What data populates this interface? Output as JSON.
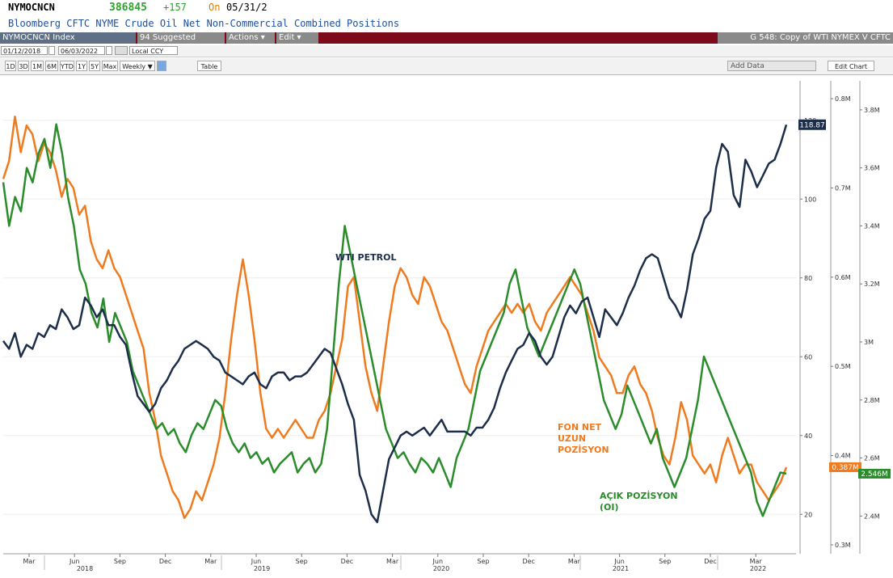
{
  "header": {
    "ticker": "NYMOCNCN",
    "last": "386845",
    "change": "+157",
    "on_label": "On",
    "date": "05/31/2",
    "description": "Bloomberg CFTC NYME Crude Oil Net Non-Commercial Combined Positions"
  },
  "toolbar": {
    "index": "NYMOCNCN Index",
    "suggested": "94 Suggested Charts",
    "actions": "Actions ▾",
    "edit": "Edit ▾",
    "chart_title": "G 548: Copy of WTI NYMEX V CFTC LONGS"
  },
  "daterange": {
    "start": "01/12/2018",
    "end": "06/03/2022",
    "currency": "Local CCY"
  },
  "periods": [
    "1D",
    "3D",
    "1M",
    "6M",
    "YTD",
    "1Y",
    "5Y",
    "Max",
    "Weekly ▼"
  ],
  "table_label": "Table",
  "add_data": "Add Data",
  "edit_chart": "Edit Chart",
  "colors": {
    "wti": "#1c2e4a",
    "fon": "#f07a1e",
    "oi": "#2a8c2a",
    "toolbar": "#7d0a1a"
  },
  "chart_data": {
    "type": "line",
    "x_labels": [
      "Mar",
      "Jun",
      "Sep",
      "Dec",
      "Mar",
      "Jun",
      "Sep",
      "Dec",
      "Mar",
      "Jun",
      "Sep",
      "Dec",
      "Mar",
      "Jun",
      "Sep",
      "Dec",
      "Mar",
      "Jun"
    ],
    "years": [
      "2018",
      "2019",
      "2020",
      "2021",
      "2022"
    ],
    "axes": {
      "wti": {
        "ticks": [
          "20",
          "40",
          "60",
          "80",
          "100",
          "120"
        ],
        "range": [
          10,
          130
        ]
      },
      "fon": {
        "ticks": [
          "0.3M",
          "0.4M",
          "0.5M",
          "0.6M",
          "0.7M",
          "0.8M"
        ],
        "range": [
          0.29,
          0.82
        ]
      },
      "oi": {
        "ticks": [
          "2.4M",
          "2.6M",
          "2.8M",
          "3M",
          "3.2M",
          "3.4M",
          "3.6M",
          "3.8M"
        ],
        "range": [
          2.27,
          3.9
        ]
      }
    },
    "series": [
      {
        "name": "WTI PETROL",
        "axis": "wti",
        "last_label": "118.87",
        "values": [
          64,
          62,
          66,
          60,
          63,
          62,
          66,
          65,
          68,
          67,
          72,
          70,
          67,
          68,
          75,
          73,
          70,
          72,
          68,
          68,
          65,
          63,
          56,
          50,
          48,
          46,
          48,
          52,
          54,
          57,
          59,
          62,
          63,
          64,
          63,
          62,
          60,
          59,
          56,
          55,
          54,
          53,
          55,
          56,
          53,
          52,
          55,
          56,
          56,
          54,
          55,
          55,
          56,
          58,
          60,
          62,
          61,
          57,
          53,
          48,
          44,
          30,
          26,
          20,
          18,
          26,
          34,
          37,
          40,
          41,
          40,
          41,
          42,
          40,
          42,
          44,
          41,
          41,
          41,
          41,
          40,
          42,
          42,
          44,
          47,
          52,
          56,
          59,
          62,
          63,
          66,
          64,
          60,
          58,
          60,
          65,
          70,
          73,
          71,
          74,
          75,
          70,
          65,
          72,
          70,
          68,
          71,
          75,
          78,
          82,
          85,
          86,
          85,
          80,
          75,
          73,
          70,
          77,
          86,
          90,
          95,
          97,
          108,
          114,
          112,
          101,
          98,
          110,
          107,
          103,
          106,
          109,
          110,
          114,
          118.87
        ]
      },
      {
        "name": "FON NET UZUN POZİSYON",
        "axis": "fon",
        "last_label": "0.387M",
        "values": [
          0.71,
          0.73,
          0.78,
          0.74,
          0.77,
          0.76,
          0.73,
          0.75,
          0.74,
          0.72,
          0.69,
          0.71,
          0.7,
          0.67,
          0.68,
          0.64,
          0.62,
          0.61,
          0.63,
          0.61,
          0.6,
          0.58,
          0.56,
          0.54,
          0.52,
          0.47,
          0.44,
          0.4,
          0.38,
          0.36,
          0.35,
          0.33,
          0.34,
          0.36,
          0.35,
          0.37,
          0.39,
          0.42,
          0.47,
          0.53,
          0.58,
          0.62,
          0.58,
          0.53,
          0.47,
          0.43,
          0.42,
          0.43,
          0.42,
          0.43,
          0.44,
          0.43,
          0.42,
          0.42,
          0.44,
          0.45,
          0.47,
          0.5,
          0.53,
          0.59,
          0.6,
          0.55,
          0.5,
          0.47,
          0.45,
          0.5,
          0.55,
          0.59,
          0.61,
          0.6,
          0.58,
          0.57,
          0.6,
          0.59,
          0.57,
          0.55,
          0.54,
          0.52,
          0.5,
          0.48,
          0.47,
          0.5,
          0.52,
          0.54,
          0.55,
          0.56,
          0.57,
          0.56,
          0.57,
          0.56,
          0.57,
          0.55,
          0.54,
          0.56,
          0.57,
          0.58,
          0.59,
          0.6,
          0.59,
          0.58,
          0.56,
          0.54,
          0.51,
          0.5,
          0.49,
          0.47,
          0.47,
          0.49,
          0.5,
          0.48,
          0.47,
          0.45,
          0.42,
          0.4,
          0.39,
          0.42,
          0.46,
          0.44,
          0.4,
          0.39,
          0.38,
          0.39,
          0.37,
          0.4,
          0.42,
          0.4,
          0.38,
          0.39,
          0.39,
          0.37,
          0.36,
          0.35,
          0.36,
          0.37,
          0.387
        ]
      },
      {
        "name": "AÇIK POZİSYON (OI)",
        "axis": "oi",
        "last_label": "2.546M",
        "values": [
          3.55,
          3.4,
          3.5,
          3.45,
          3.6,
          3.55,
          3.65,
          3.7,
          3.6,
          3.75,
          3.65,
          3.5,
          3.4,
          3.25,
          3.2,
          3.1,
          3.05,
          3.15,
          3.0,
          3.1,
          3.05,
          3.0,
          2.9,
          2.85,
          2.8,
          2.75,
          2.7,
          2.72,
          2.68,
          2.7,
          2.65,
          2.62,
          2.68,
          2.72,
          2.7,
          2.75,
          2.8,
          2.78,
          2.7,
          2.65,
          2.62,
          2.65,
          2.6,
          2.62,
          2.58,
          2.6,
          2.55,
          2.58,
          2.6,
          2.62,
          2.55,
          2.58,
          2.6,
          2.55,
          2.58,
          2.7,
          2.95,
          3.2,
          3.4,
          3.3,
          3.2,
          3.1,
          3.0,
          2.9,
          2.8,
          2.7,
          2.65,
          2.6,
          2.62,
          2.58,
          2.55,
          2.6,
          2.58,
          2.55,
          2.6,
          2.55,
          2.5,
          2.6,
          2.65,
          2.7,
          2.8,
          2.9,
          2.95,
          3.0,
          3.05,
          3.1,
          3.2,
          3.25,
          3.15,
          3.05,
          3.0,
          2.95,
          3.0,
          3.05,
          3.1,
          3.15,
          3.2,
          3.25,
          3.2,
          3.1,
          3.0,
          2.9,
          2.8,
          2.75,
          2.7,
          2.75,
          2.85,
          2.8,
          2.75,
          2.7,
          2.65,
          2.7,
          2.6,
          2.55,
          2.5,
          2.55,
          2.6,
          2.7,
          2.8,
          2.95,
          2.9,
          2.85,
          2.8,
          2.75,
          2.7,
          2.65,
          2.6,
          2.55,
          2.45,
          2.4,
          2.45,
          2.5,
          2.55,
          2.546
        ]
      }
    ],
    "annotations": [
      {
        "text": "WTI PETROL",
        "series": "WTI PETROL"
      },
      {
        "text": "FON NET",
        "series": "FON NET UZUN POZİSYON"
      },
      {
        "text": "UZUN",
        "series": "FON NET UZUN POZİSYON"
      },
      {
        "text": "POZİSYON",
        "series": "FON NET UZUN POZİSYON"
      },
      {
        "text": "AÇIK POZİSYON",
        "series": "AÇIK POZİSYON (OI)"
      },
      {
        "text": "(OI)",
        "series": "AÇIK POZİSYON (OI)"
      }
    ]
  }
}
